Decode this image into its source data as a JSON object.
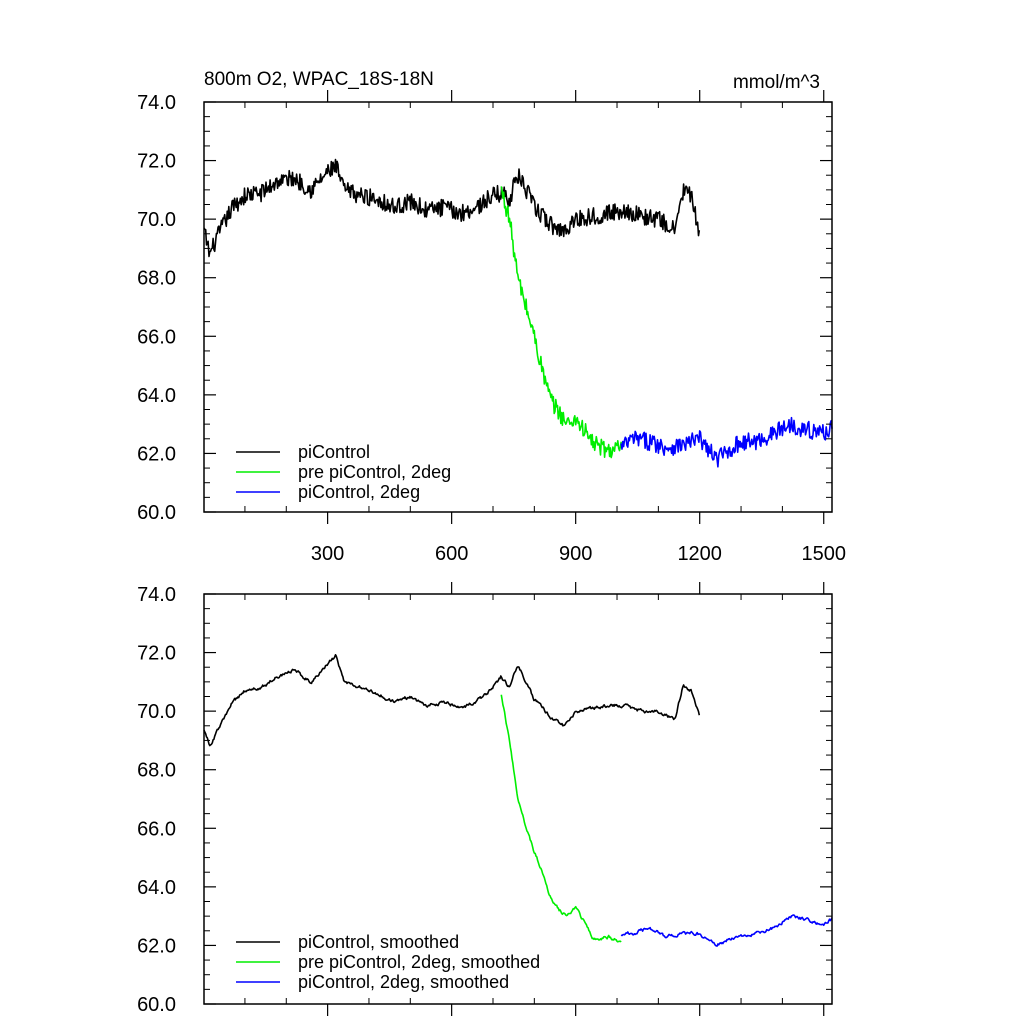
{
  "figure": {
    "title": "800m O2, WPAC_18S-18N",
    "units": "mmol/m^3"
  },
  "chart_data": [
    {
      "type": "line",
      "xlim": [
        1,
        1520
      ],
      "ylim": [
        60,
        74
      ],
      "x_ticks": [
        300,
        600,
        900,
        1200,
        1500
      ],
      "y_ticks": [
        "60.0",
        "62.0",
        "64.0",
        "66.0",
        "68.0",
        "70.0",
        "72.0",
        "74.0"
      ],
      "legend_position": "bottom-left",
      "series": [
        {
          "name": "piControl",
          "color": "#000000",
          "x_range": [
            1,
            1200
          ],
          "keypoints": [
            [
              1,
              69.6
            ],
            [
              15,
              68.8
            ],
            [
              40,
              69.6
            ],
            [
              70,
              70.4
            ],
            [
              100,
              70.8
            ],
            [
              140,
              70.9
            ],
            [
              180,
              71.3
            ],
            [
              220,
              71.4
            ],
            [
              260,
              71.0
            ],
            [
              300,
              71.6
            ],
            [
              320,
              71.8
            ],
            [
              340,
              71.0
            ],
            [
              380,
              70.8
            ],
            [
              420,
              70.7
            ],
            [
              460,
              70.4
            ],
            [
              500,
              70.6
            ],
            [
              540,
              70.3
            ],
            [
              580,
              70.4
            ],
            [
              620,
              70.2
            ],
            [
              660,
              70.4
            ],
            [
              700,
              70.8
            ],
            [
              720,
              70.9
            ],
            [
              740,
              70.7
            ],
            [
              760,
              71.5
            ],
            [
              780,
              71.0
            ],
            [
              800,
              70.4
            ],
            [
              840,
              69.8
            ],
            [
              870,
              69.6
            ],
            [
              900,
              70.0
            ],
            [
              940,
              70.1
            ],
            [
              980,
              70.2
            ],
            [
              1020,
              70.3
            ],
            [
              1060,
              70.1
            ],
            [
              1100,
              70.0
            ],
            [
              1140,
              69.6
            ],
            [
              1160,
              71.0
            ],
            [
              1180,
              70.8
            ],
            [
              1200,
              69.3
            ]
          ],
          "noise_amplitude": 0.3
        },
        {
          "name": "pre piControl, 2deg",
          "color": "#00ee00",
          "x_range": [
            720,
            1010
          ],
          "keypoints": [
            [
              720,
              71.0
            ],
            [
              740,
              70.0
            ],
            [
              760,
              68.0
            ],
            [
              780,
              67.0
            ],
            [
              800,
              66.0
            ],
            [
              820,
              64.8
            ],
            [
              840,
              63.8
            ],
            [
              860,
              63.4
            ],
            [
              880,
              63.0
            ],
            [
              900,
              63.2
            ],
            [
              920,
              62.8
            ],
            [
              940,
              62.4
            ],
            [
              960,
              62.2
            ],
            [
              980,
              62.1
            ],
            [
              1010,
              62.2
            ]
          ],
          "noise_amplitude": 0.3
        },
        {
          "name": "piControl, 2deg",
          "color": "#0000ff",
          "x_range": [
            1010,
            1520
          ],
          "keypoints": [
            [
              1010,
              62.2
            ],
            [
              1040,
              62.5
            ],
            [
              1080,
              62.4
            ],
            [
              1120,
              62.2
            ],
            [
              1160,
              62.3
            ],
            [
              1200,
              62.5
            ],
            [
              1240,
              61.8
            ],
            [
              1270,
              62.1
            ],
            [
              1300,
              62.4
            ],
            [
              1340,
              62.4
            ],
            [
              1380,
              62.7
            ],
            [
              1420,
              63.0
            ],
            [
              1460,
              62.8
            ],
            [
              1500,
              62.7
            ],
            [
              1520,
              62.9
            ]
          ],
          "noise_amplitude": 0.3
        }
      ]
    },
    {
      "type": "line",
      "xlim": [
        1,
        1520
      ],
      "ylim": [
        60,
        74
      ],
      "y_ticks": [
        "60.0",
        "62.0",
        "64.0",
        "66.0",
        "68.0",
        "70.0",
        "72.0",
        "74.0"
      ],
      "legend_position": "bottom-left",
      "series": [
        {
          "name": "piControl, smoothed",
          "color": "#000000",
          "x_range": [
            1,
            1200
          ],
          "keypoints": [
            [
              1,
              69.4
            ],
            [
              15,
              68.8
            ],
            [
              40,
              69.5
            ],
            [
              70,
              70.3
            ],
            [
              100,
              70.7
            ],
            [
              140,
              70.8
            ],
            [
              180,
              71.2
            ],
            [
              220,
              71.4
            ],
            [
              260,
              71.0
            ],
            [
              300,
              71.6
            ],
            [
              320,
              71.9
            ],
            [
              340,
              71.0
            ],
            [
              380,
              70.8
            ],
            [
              420,
              70.6
            ],
            [
              460,
              70.3
            ],
            [
              500,
              70.5
            ],
            [
              540,
              70.2
            ],
            [
              580,
              70.3
            ],
            [
              620,
              70.1
            ],
            [
              660,
              70.3
            ],
            [
              700,
              70.8
            ],
            [
              720,
              71.2
            ],
            [
              740,
              70.8
            ],
            [
              760,
              71.6
            ],
            [
              780,
              71.0
            ],
            [
              800,
              70.4
            ],
            [
              840,
              69.8
            ],
            [
              870,
              69.5
            ],
            [
              900,
              70.0
            ],
            [
              940,
              70.1
            ],
            [
              980,
              70.2
            ],
            [
              1020,
              70.2
            ],
            [
              1060,
              70.0
            ],
            [
              1100,
              70.0
            ],
            [
              1140,
              69.7
            ],
            [
              1160,
              70.9
            ],
            [
              1180,
              70.7
            ],
            [
              1200,
              69.8
            ]
          ],
          "noise_amplitude": 0.12
        },
        {
          "name": "pre piControl, 2deg, smoothed",
          "color": "#00ee00",
          "x_range": [
            720,
            1010
          ],
          "keypoints": [
            [
              720,
              70.6
            ],
            [
              740,
              69.0
            ],
            [
              760,
              67.0
            ],
            [
              780,
              66.0
            ],
            [
              800,
              65.2
            ],
            [
              820,
              64.5
            ],
            [
              840,
              63.6
            ],
            [
              860,
              63.2
            ],
            [
              880,
              63.0
            ],
            [
              900,
              63.3
            ],
            [
              920,
              62.8
            ],
            [
              940,
              62.3
            ],
            [
              960,
              62.2
            ],
            [
              980,
              62.3
            ],
            [
              1010,
              62.1
            ]
          ],
          "noise_amplitude": 0.12
        },
        {
          "name": "piControl, 2deg, smoothed",
          "color": "#0000ff",
          "x_range": [
            1010,
            1520
          ],
          "keypoints": [
            [
              1010,
              62.4
            ],
            [
              1040,
              62.4
            ],
            [
              1080,
              62.6
            ],
            [
              1120,
              62.3
            ],
            [
              1160,
              62.4
            ],
            [
              1200,
              62.4
            ],
            [
              1240,
              62.0
            ],
            [
              1270,
              62.2
            ],
            [
              1300,
              62.3
            ],
            [
              1340,
              62.4
            ],
            [
              1380,
              62.6
            ],
            [
              1420,
              63.0
            ],
            [
              1460,
              62.9
            ],
            [
              1500,
              62.7
            ],
            [
              1520,
              62.9
            ]
          ],
          "noise_amplitude": 0.12
        }
      ]
    }
  ]
}
